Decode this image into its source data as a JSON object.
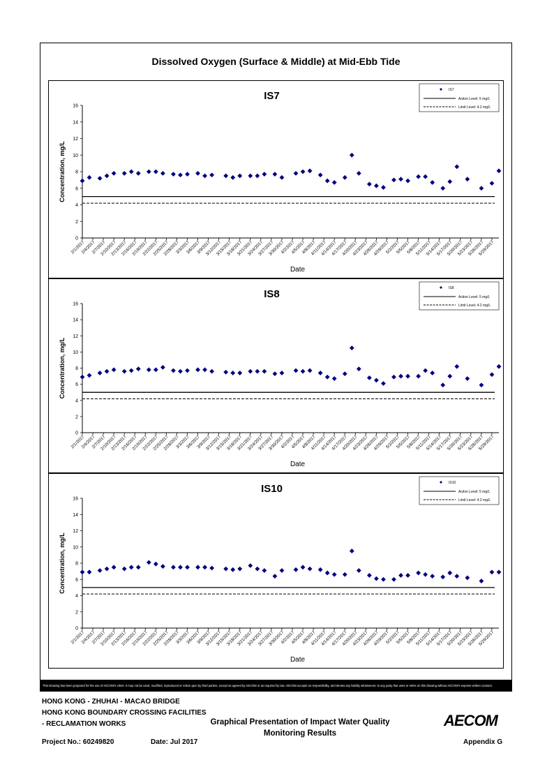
{
  "page_title": "Dissolved Oxygen (Surface & Middle) at Mid-Ebb Tide",
  "chart_data": [
    {
      "type": "scatter",
      "title": "IS7",
      "xlabel": "Date",
      "ylabel": "Concentration, mg/L",
      "ylim": [
        0,
        16
      ],
      "yticks": [
        0,
        2,
        4,
        6,
        8,
        10,
        12,
        14,
        16
      ],
      "xticks": [
        "2/1/2017",
        "2/4/2017",
        "2/7/2017",
        "2/10/2017",
        "2/13/2017",
        "2/16/2017",
        "2/19/2017",
        "2/22/2017",
        "2/25/2017",
        "2/28/2017",
        "3/3/2017",
        "3/6/2017",
        "3/9/2017",
        "3/12/2017",
        "3/15/2017",
        "3/18/2017",
        "3/21/2017",
        "3/24/2017",
        "3/27/2017",
        "3/30/2017",
        "4/2/2017",
        "4/5/2017",
        "4/8/2017",
        "4/11/2017",
        "4/14/2017",
        "4/17/2017",
        "4/20/2017",
        "4/23/2017",
        "4/26/2017",
        "4/29/2017",
        "5/2/2017",
        "5/5/2017",
        "5/8/2017",
        "5/11/2017",
        "5/14/2017",
        "5/17/2017",
        "5/20/2017",
        "5/23/2017",
        "5/26/2017",
        "5/29/2017"
      ],
      "x_start": "2/1/2017",
      "x_end": "5/31/2017",
      "series": [
        {
          "name": "IS7",
          "x": [
            "2/1/2017",
            "2/3/2017",
            "2/6/2017",
            "2/8/2017",
            "2/10/2017",
            "2/13/2017",
            "2/15/2017",
            "2/17/2017",
            "2/20/2017",
            "2/22/2017",
            "2/24/2017",
            "2/27/2017",
            "3/1/2017",
            "3/3/2017",
            "3/6/2017",
            "3/8/2017",
            "3/10/2017",
            "3/14/2017",
            "3/16/2017",
            "3/18/2017",
            "3/21/2017",
            "3/23/2017",
            "3/25/2017",
            "3/28/2017",
            "3/30/2017",
            "4/3/2017",
            "4/5/2017",
            "4/7/2017",
            "4/10/2017",
            "4/12/2017",
            "4/14/2017",
            "4/17/2017",
            "4/19/2017",
            "4/21/2017",
            "4/24/2017",
            "4/26/2017",
            "4/28/2017",
            "5/1/2017",
            "5/3/2017",
            "5/5/2017",
            "5/8/2017",
            "5/10/2017",
            "5/12/2017",
            "5/15/2017",
            "5/17/2017",
            "5/19/2017",
            "5/22/2017",
            "5/26/2017",
            "5/29/2017",
            "5/31/2017"
          ],
          "values": [
            6.9,
            7.3,
            7.2,
            7.5,
            7.8,
            7.8,
            8.0,
            7.8,
            8.0,
            8.0,
            7.8,
            7.7,
            7.6,
            7.7,
            7.8,
            7.5,
            7.6,
            7.5,
            7.3,
            7.5,
            7.5,
            7.5,
            7.7,
            7.7,
            7.3,
            7.8,
            8.0,
            8.1,
            7.6,
            6.9,
            6.7,
            7.3,
            10.0,
            7.8,
            6.5,
            6.3,
            6.1,
            7.0,
            7.1,
            6.9,
            7.4,
            7.4,
            6.7,
            6.0,
            6.8,
            8.6,
            7.1,
            6.0,
            6.6,
            8.1
          ]
        },
        {
          "name": "Action Level: 5 mg/L",
          "constant": 5
        },
        {
          "name": "Limit Level: 4.2 mg/L",
          "constant": 4.2
        }
      ],
      "legend_position": "top-right"
    },
    {
      "type": "scatter",
      "title": "IS8",
      "xlabel": "Date",
      "ylabel": "Concentration, mg/L",
      "ylim": [
        0,
        16
      ],
      "yticks": [
        0,
        2,
        4,
        6,
        8,
        10,
        12,
        14,
        16
      ],
      "xticks": [
        "2/1/2017",
        "2/4/2017",
        "2/7/2017",
        "2/10/2017",
        "2/13/2017",
        "2/16/2017",
        "2/19/2017",
        "2/22/2017",
        "2/25/2017",
        "2/28/2017",
        "3/3/2017",
        "3/6/2017",
        "3/9/2017",
        "3/12/2017",
        "3/15/2017",
        "3/18/2017",
        "3/21/2017",
        "3/24/2017",
        "3/27/2017",
        "3/30/2017",
        "4/2/2017",
        "4/5/2017",
        "4/8/2017",
        "4/11/2017",
        "4/14/2017",
        "4/17/2017",
        "4/20/2017",
        "4/23/2017",
        "4/26/2017",
        "4/29/2017",
        "5/2/2017",
        "5/5/2017",
        "5/8/2017",
        "5/11/2017",
        "5/14/2017",
        "5/17/2017",
        "5/20/2017",
        "5/23/2017",
        "5/26/2017",
        "5/29/2017"
      ],
      "x_start": "2/1/2017",
      "x_end": "5/31/2017",
      "series": [
        {
          "name": "IS8",
          "x": [
            "2/1/2017",
            "2/3/2017",
            "2/6/2017",
            "2/8/2017",
            "2/10/2017",
            "2/13/2017",
            "2/15/2017",
            "2/17/2017",
            "2/20/2017",
            "2/22/2017",
            "2/24/2017",
            "2/27/2017",
            "3/1/2017",
            "3/3/2017",
            "3/6/2017",
            "3/8/2017",
            "3/10/2017",
            "3/14/2017",
            "3/16/2017",
            "3/18/2017",
            "3/21/2017",
            "3/23/2017",
            "3/25/2017",
            "3/28/2017",
            "3/30/2017",
            "4/3/2017",
            "4/5/2017",
            "4/7/2017",
            "4/10/2017",
            "4/12/2017",
            "4/14/2017",
            "4/17/2017",
            "4/19/2017",
            "4/21/2017",
            "4/24/2017",
            "4/26/2017",
            "4/28/2017",
            "5/1/2017",
            "5/3/2017",
            "5/5/2017",
            "5/8/2017",
            "5/10/2017",
            "5/12/2017",
            "5/15/2017",
            "5/17/2017",
            "5/19/2017",
            "5/22/2017",
            "5/26/2017",
            "5/29/2017",
            "5/31/2017"
          ],
          "values": [
            6.9,
            7.1,
            7.4,
            7.6,
            7.8,
            7.6,
            7.7,
            7.9,
            7.8,
            7.8,
            8.1,
            7.7,
            7.6,
            7.7,
            7.8,
            7.8,
            7.6,
            7.5,
            7.4,
            7.4,
            7.6,
            7.6,
            7.6,
            7.3,
            7.4,
            7.7,
            7.6,
            7.7,
            7.4,
            6.9,
            6.7,
            7.3,
            10.5,
            7.9,
            6.8,
            6.5,
            6.1,
            6.9,
            7.0,
            7.0,
            7.0,
            7.7,
            7.4,
            5.9,
            7.0,
            8.2,
            6.7,
            5.9,
            7.2,
            8.2
          ]
        },
        {
          "name": "Action Level: 5 mg/L",
          "constant": 5
        },
        {
          "name": "Limit Level: 4.2 mg/L",
          "constant": 4.2
        }
      ],
      "legend_position": "top-right"
    },
    {
      "type": "scatter",
      "title": "IS10",
      "xlabel": "Date",
      "ylabel": "Concentration, mg/L",
      "ylim": [
        0,
        16
      ],
      "yticks": [
        0,
        2,
        4,
        6,
        8,
        10,
        12,
        14,
        16
      ],
      "xticks": [
        "2/1/2017",
        "2/4/2017",
        "2/7/2017",
        "2/10/2017",
        "2/13/2017",
        "2/16/2017",
        "2/19/2017",
        "2/22/2017",
        "2/25/2017",
        "2/28/2017",
        "3/3/2017",
        "3/6/2017",
        "3/9/2017",
        "3/12/2017",
        "3/15/2017",
        "3/18/2017",
        "3/21/2017",
        "3/24/2017",
        "3/27/2017",
        "3/30/2017",
        "4/2/2017",
        "4/5/2017",
        "4/8/2017",
        "4/11/2017",
        "4/14/2017",
        "4/17/2017",
        "4/20/2017",
        "4/23/2017",
        "4/26/2017",
        "4/29/2017",
        "5/2/2017",
        "5/5/2017",
        "5/8/2017",
        "5/11/2017",
        "5/14/2017",
        "5/17/2017",
        "5/20/2017",
        "5/23/2017",
        "5/26/2017",
        "5/29/2017"
      ],
      "x_start": "2/1/2017",
      "x_end": "5/31/2017",
      "series": [
        {
          "name": "IS10",
          "x": [
            "2/1/2017",
            "2/3/2017",
            "2/6/2017",
            "2/8/2017",
            "2/10/2017",
            "2/13/2017",
            "2/15/2017",
            "2/17/2017",
            "2/20/2017",
            "2/22/2017",
            "2/24/2017",
            "2/27/2017",
            "3/1/2017",
            "3/3/2017",
            "3/6/2017",
            "3/8/2017",
            "3/10/2017",
            "3/14/2017",
            "3/16/2017",
            "3/18/2017",
            "3/21/2017",
            "3/23/2017",
            "3/25/2017",
            "3/28/2017",
            "3/30/2017",
            "4/3/2017",
            "4/5/2017",
            "4/7/2017",
            "4/10/2017",
            "4/12/2017",
            "4/14/2017",
            "4/17/2017",
            "4/19/2017",
            "4/21/2017",
            "4/24/2017",
            "4/26/2017",
            "4/28/2017",
            "5/1/2017",
            "5/3/2017",
            "5/5/2017",
            "5/8/2017",
            "5/10/2017",
            "5/12/2017",
            "5/15/2017",
            "5/17/2017",
            "5/19/2017",
            "5/22/2017",
            "5/26/2017",
            "5/29/2017",
            "5/31/2017"
          ],
          "values": [
            6.9,
            6.9,
            7.1,
            7.3,
            7.5,
            7.3,
            7.5,
            7.5,
            8.1,
            7.9,
            7.6,
            7.5,
            7.5,
            7.5,
            7.5,
            7.5,
            7.4,
            7.3,
            7.2,
            7.3,
            7.7,
            7.3,
            7.1,
            6.4,
            7.1,
            7.2,
            7.5,
            7.3,
            7.2,
            6.8,
            6.6,
            6.6,
            9.5,
            7.1,
            6.5,
            6.1,
            6.0,
            6.0,
            6.5,
            6.5,
            6.8,
            6.6,
            6.4,
            6.3,
            6.8,
            6.4,
            6.2,
            5.8,
            6.9,
            6.9
          ]
        },
        {
          "name": "Action Level: 5 mg/L",
          "constant": 5
        },
        {
          "name": "Limit Level: 4.2 mg/L",
          "constant": 4.2
        }
      ],
      "legend_position": "top-right"
    }
  ],
  "disclaimer": "This Drawing has been prepared for the use of AECOM's client. It may not be used, modified, reproduced or relied upon by third parties, except as agreed by AECOM or as required by law. AECOM accepts no responsibility, and denies any liability whatsoever, to any party that uses or relies on this drawing without AECOM's express written consent.",
  "footer": {
    "line1": "HONG KONG - ZHUHAI - MACAO BRIDGE",
    "line2": "HONG KONG BOUNDARY CROSSING FACILITIES",
    "line3": "- RECLAMATION WORKS",
    "center_title_1": "Graphical Presentation of Impact Water Quality",
    "center_title_2": "Monitoring Results",
    "project_no": "Project No.: 60249820",
    "date": "Date: Jul 2017",
    "appendix": "Appendix G",
    "logo_text": "AECOM"
  },
  "colors": {
    "marker": "#00007f",
    "line": "#000000"
  }
}
